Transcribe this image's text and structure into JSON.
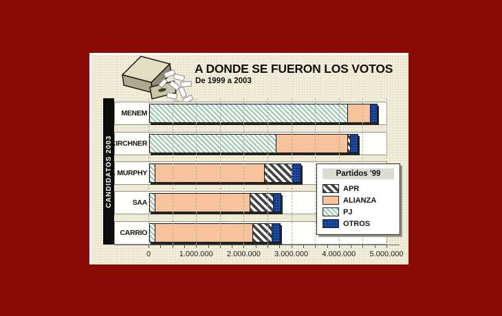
{
  "window": {
    "bg_color": "#8A0B04",
    "panel_bg": "#F2EEDB"
  },
  "header": {
    "title": "A DONDE SE FUERON LOS VOTOS",
    "subtitle": "De 1999 a 2003"
  },
  "sidebar": {
    "label": "CANDIDATOS 2003"
  },
  "legend": {
    "title": "Partidos '99",
    "items": [
      {
        "label": "APR",
        "swatch": "apr",
        "style": "dark-gray-diagonal-hatch"
      },
      {
        "label": "ALIANZA",
        "swatch": "alianza",
        "color": "#F8C29D"
      },
      {
        "label": "PJ",
        "swatch": "pj",
        "style": "green-diagonal-hatch",
        "color": "#A4CAB5"
      },
      {
        "label": "OTROS",
        "swatch": "otros",
        "color": "#1C4EA6"
      }
    ]
  },
  "icons": {
    "ballot_box": "ballot-box-spilling-votes-icon"
  },
  "chart_data": {
    "type": "bar",
    "orientation": "horizontal",
    "stacked": true,
    "title": "A DONDE SE FUERON LOS VOTOS",
    "subtitle": "De 1999 a 2003",
    "ylabel": "CANDIDATOS 2003",
    "xlabel": "",
    "categories": [
      "MENEM",
      "KIRCHNER",
      "L. MURPHY",
      "SAA",
      "CARRIO"
    ],
    "series": [
      {
        "name": "PJ",
        "values": [
          4150000,
          2650000,
          100000,
          100000,
          100000
        ]
      },
      {
        "name": "ALIANZA",
        "values": [
          480000,
          1500000,
          2300000,
          2000000,
          2050000
        ]
      },
      {
        "name": "APR",
        "values": [
          0,
          50000,
          580000,
          480000,
          410000
        ]
      },
      {
        "name": "OTROS",
        "values": [
          140000,
          170000,
          190000,
          170000,
          170000
        ]
      }
    ],
    "totals_approx": [
      4770000,
      4370000,
      3170000,
      2750000,
      2730000
    ],
    "xlim": [
      0,
      5000000
    ],
    "x_ticks": [
      0,
      1000000,
      2000000,
      3000000,
      4000000,
      5000000
    ],
    "x_tick_labels": [
      "0",
      "1.000.000",
      "2.000.000",
      "3.000.000",
      "4.000.000",
      "5.000.000"
    ],
    "minor_tick_interval": 250000,
    "grid": "vertical-dashed-every-500000",
    "legend_position": "right-middle"
  }
}
